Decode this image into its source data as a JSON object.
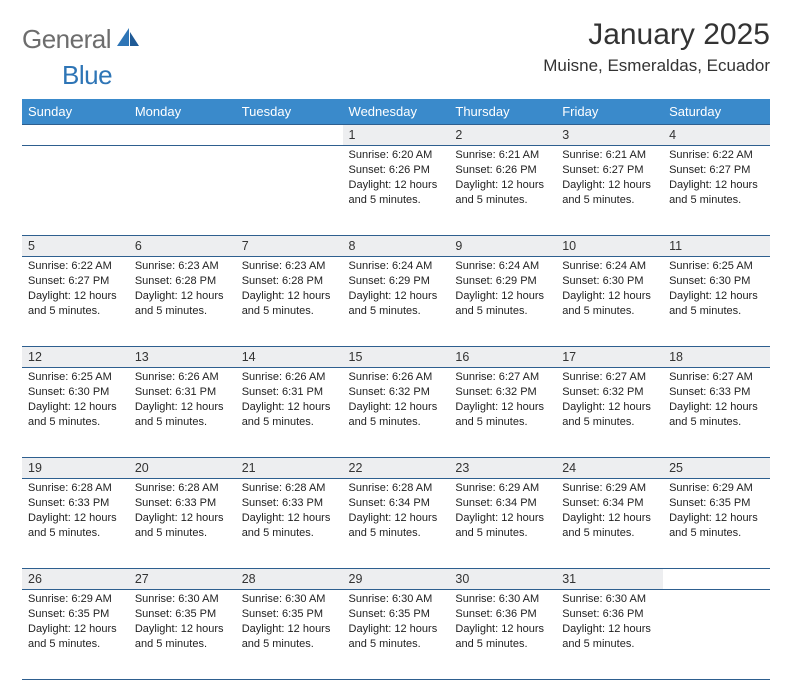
{
  "colors": {
    "header_bg": "#3a8acb",
    "header_text": "#ffffff",
    "rule": "#2e5f8f",
    "daynum_bg": "#edeef0",
    "text": "#222222",
    "title": "#333333",
    "logo_gray": "#6d6d6d",
    "logo_blue": "#2e75b6",
    "page_bg": "#ffffff"
  },
  "logo": {
    "word1": "General",
    "word2": "Blue"
  },
  "title": "January 2025",
  "location": "Muisne, Esmeraldas, Ecuador",
  "weekdays": [
    "Sunday",
    "Monday",
    "Tuesday",
    "Wednesday",
    "Thursday",
    "Friday",
    "Saturday"
  ],
  "layout": {
    "columns": 7,
    "rows": 5,
    "cell_font_size_pt": 8,
    "header_font_size_pt": 10,
    "title_font_size_pt": 23
  },
  "weeks": [
    [
      null,
      null,
      null,
      {
        "n": "1",
        "sunrise": "6:20 AM",
        "sunset": "6:26 PM",
        "daylight": "12 hours and 5 minutes."
      },
      {
        "n": "2",
        "sunrise": "6:21 AM",
        "sunset": "6:26 PM",
        "daylight": "12 hours and 5 minutes."
      },
      {
        "n": "3",
        "sunrise": "6:21 AM",
        "sunset": "6:27 PM",
        "daylight": "12 hours and 5 minutes."
      },
      {
        "n": "4",
        "sunrise": "6:22 AM",
        "sunset": "6:27 PM",
        "daylight": "12 hours and 5 minutes."
      }
    ],
    [
      {
        "n": "5",
        "sunrise": "6:22 AM",
        "sunset": "6:27 PM",
        "daylight": "12 hours and 5 minutes."
      },
      {
        "n": "6",
        "sunrise": "6:23 AM",
        "sunset": "6:28 PM",
        "daylight": "12 hours and 5 minutes."
      },
      {
        "n": "7",
        "sunrise": "6:23 AM",
        "sunset": "6:28 PM",
        "daylight": "12 hours and 5 minutes."
      },
      {
        "n": "8",
        "sunrise": "6:24 AM",
        "sunset": "6:29 PM",
        "daylight": "12 hours and 5 minutes."
      },
      {
        "n": "9",
        "sunrise": "6:24 AM",
        "sunset": "6:29 PM",
        "daylight": "12 hours and 5 minutes."
      },
      {
        "n": "10",
        "sunrise": "6:24 AM",
        "sunset": "6:30 PM",
        "daylight": "12 hours and 5 minutes."
      },
      {
        "n": "11",
        "sunrise": "6:25 AM",
        "sunset": "6:30 PM",
        "daylight": "12 hours and 5 minutes."
      }
    ],
    [
      {
        "n": "12",
        "sunrise": "6:25 AM",
        "sunset": "6:30 PM",
        "daylight": "12 hours and 5 minutes."
      },
      {
        "n": "13",
        "sunrise": "6:26 AM",
        "sunset": "6:31 PM",
        "daylight": "12 hours and 5 minutes."
      },
      {
        "n": "14",
        "sunrise": "6:26 AM",
        "sunset": "6:31 PM",
        "daylight": "12 hours and 5 minutes."
      },
      {
        "n": "15",
        "sunrise": "6:26 AM",
        "sunset": "6:32 PM",
        "daylight": "12 hours and 5 minutes."
      },
      {
        "n": "16",
        "sunrise": "6:27 AM",
        "sunset": "6:32 PM",
        "daylight": "12 hours and 5 minutes."
      },
      {
        "n": "17",
        "sunrise": "6:27 AM",
        "sunset": "6:32 PM",
        "daylight": "12 hours and 5 minutes."
      },
      {
        "n": "18",
        "sunrise": "6:27 AM",
        "sunset": "6:33 PM",
        "daylight": "12 hours and 5 minutes."
      }
    ],
    [
      {
        "n": "19",
        "sunrise": "6:28 AM",
        "sunset": "6:33 PM",
        "daylight": "12 hours and 5 minutes."
      },
      {
        "n": "20",
        "sunrise": "6:28 AM",
        "sunset": "6:33 PM",
        "daylight": "12 hours and 5 minutes."
      },
      {
        "n": "21",
        "sunrise": "6:28 AM",
        "sunset": "6:33 PM",
        "daylight": "12 hours and 5 minutes."
      },
      {
        "n": "22",
        "sunrise": "6:28 AM",
        "sunset": "6:34 PM",
        "daylight": "12 hours and 5 minutes."
      },
      {
        "n": "23",
        "sunrise": "6:29 AM",
        "sunset": "6:34 PM",
        "daylight": "12 hours and 5 minutes."
      },
      {
        "n": "24",
        "sunrise": "6:29 AM",
        "sunset": "6:34 PM",
        "daylight": "12 hours and 5 minutes."
      },
      {
        "n": "25",
        "sunrise": "6:29 AM",
        "sunset": "6:35 PM",
        "daylight": "12 hours and 5 minutes."
      }
    ],
    [
      {
        "n": "26",
        "sunrise": "6:29 AM",
        "sunset": "6:35 PM",
        "daylight": "12 hours and 5 minutes."
      },
      {
        "n": "27",
        "sunrise": "6:30 AM",
        "sunset": "6:35 PM",
        "daylight": "12 hours and 5 minutes."
      },
      {
        "n": "28",
        "sunrise": "6:30 AM",
        "sunset": "6:35 PM",
        "daylight": "12 hours and 5 minutes."
      },
      {
        "n": "29",
        "sunrise": "6:30 AM",
        "sunset": "6:35 PM",
        "daylight": "12 hours and 5 minutes."
      },
      {
        "n": "30",
        "sunrise": "6:30 AM",
        "sunset": "6:36 PM",
        "daylight": "12 hours and 5 minutes."
      },
      {
        "n": "31",
        "sunrise": "6:30 AM",
        "sunset": "6:36 PM",
        "daylight": "12 hours and 5 minutes."
      },
      null
    ]
  ],
  "labels": {
    "sunrise": "Sunrise: ",
    "sunset": "Sunset: ",
    "daylight": "Daylight: "
  }
}
